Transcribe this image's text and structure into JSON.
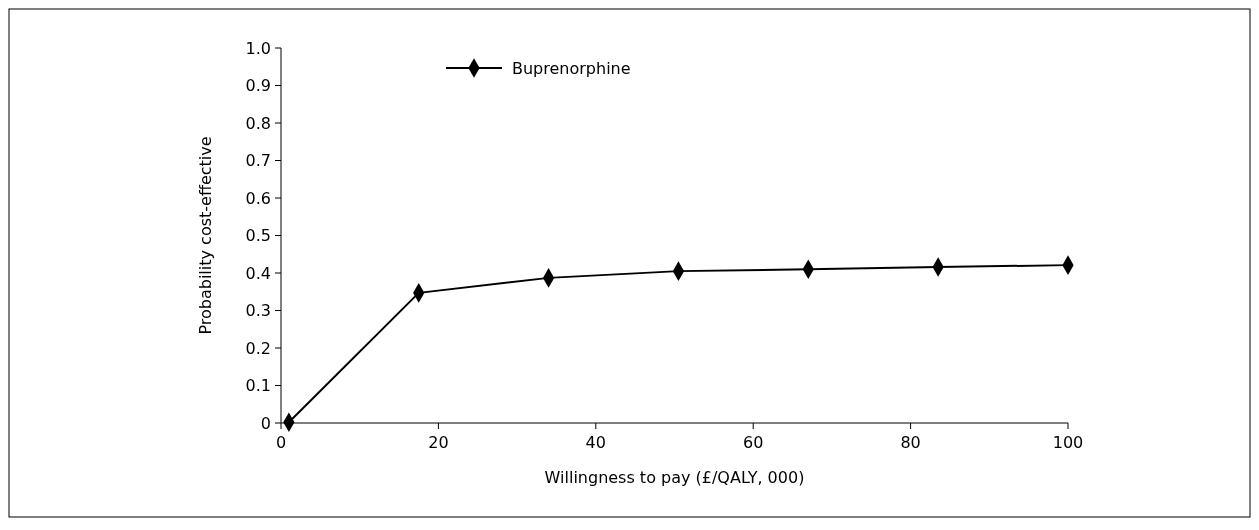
{
  "chart_data": {
    "type": "line",
    "xlabel": "Willingness to pay (£/QALY, 000)",
    "ylabel": "Probability cost-effective",
    "x": [
      1,
      17.5,
      34,
      50.5,
      67,
      83.5,
      100
    ],
    "series": [
      {
        "name": "Buprenorphine",
        "color": "#000000",
        "values": [
          0.002,
          0.347,
          0.387,
          0.405,
          0.41,
          0.416,
          0.421
        ]
      }
    ],
    "xlim": [
      0,
      100
    ],
    "xticks": [
      0,
      20,
      40,
      60,
      80,
      100
    ],
    "ylim": [
      0,
      1
    ],
    "yticks": [
      0,
      {
        "value": 0.1,
        "label": "0.1"
      },
      {
        "value": 0.2,
        "label": "0.2"
      },
      {
        "value": 0.3,
        "label": "0.3"
      },
      {
        "value": 0.4,
        "label": "0.4"
      },
      {
        "value": 0.5,
        "label": "0.5"
      },
      {
        "value": 0.6,
        "label": "0.6"
      },
      {
        "value": 0.7,
        "label": "0.7"
      },
      {
        "value": 0.8,
        "label": "0.8"
      },
      {
        "value": 0.9,
        "label": "0.9"
      },
      {
        "value": 1,
        "label": "1.0"
      }
    ],
    "legend": "top left",
    "marker": "diamond",
    "line_style": "solid",
    "grid": false
  }
}
